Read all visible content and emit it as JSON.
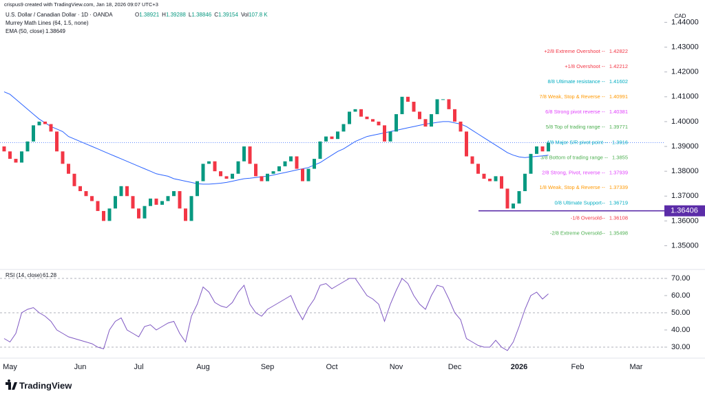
{
  "header": {
    "credit": "crispus9 created with TradingView.com, Jan 18, 2026 09:07 UTC+3",
    "logo": "TradingView"
  },
  "chart_data": [
    {
      "type": "candlestick",
      "title": "U.S. Dollar / Canadian Dollar · 1D · OANDA",
      "currency": "CAD",
      "ohlc_legend": [
        {
          "label": "O",
          "value": 1.38921
        },
        {
          "label": "H",
          "value": 1.39288
        },
        {
          "label": "L",
          "value": 1.38846
        },
        {
          "label": "C",
          "value": 1.39154
        }
      ],
      "volume_legend": {
        "label": "Vol",
        "value": "107.8 K"
      },
      "categories": [
        null,
        "May",
        null,
        null,
        null,
        null,
        null,
        null,
        null,
        null,
        null,
        null,
        null,
        "Jun",
        null,
        null,
        null,
        null,
        null,
        null,
        null,
        null,
        null,
        "Jul",
        null,
        null,
        null,
        null,
        null,
        null,
        null,
        null,
        null,
        null,
        "Aug",
        null,
        null,
        null,
        null,
        null,
        null,
        null,
        null,
        null,
        null,
        "Sep",
        null,
        null,
        null,
        null,
        null,
        null,
        null,
        null,
        null,
        null,
        "Oct",
        null,
        null,
        null,
        null,
        null,
        null,
        null,
        null,
        null,
        null,
        "Nov",
        null,
        null,
        null,
        null,
        null,
        null,
        null,
        null,
        null,
        "Dec",
        null,
        null,
        null,
        null,
        null,
        null,
        null,
        null,
        null,
        null,
        "2026",
        null,
        null,
        null,
        null,
        null,
        null,
        null,
        null,
        null,
        "Feb",
        null,
        null,
        null,
        null,
        null,
        null,
        null,
        null,
        null,
        "Mar",
        null,
        null,
        null,
        null
      ],
      "open": [
        1.39,
        1.388,
        1.385,
        1.3835,
        1.388,
        1.392,
        1.3985,
        1.4,
        1.399,
        1.396,
        1.388,
        1.383,
        1.379,
        1.374,
        1.372,
        1.37,
        1.368,
        1.364,
        1.36,
        1.365,
        1.37,
        1.374,
        1.37,
        1.365,
        1.361,
        1.366,
        1.369,
        1.3665,
        1.368,
        1.37,
        1.372,
        1.365,
        1.36,
        1.37,
        1.376,
        1.383,
        1.384,
        1.38,
        1.378,
        1.377,
        1.379,
        1.384,
        1.39,
        1.383,
        1.378,
        1.376,
        1.379,
        1.38,
        1.382,
        1.384,
        1.386,
        1.381,
        1.376,
        1.381,
        1.385,
        1.392,
        1.394,
        1.393,
        1.396,
        1.399,
        1.404,
        1.405,
        1.402,
        1.401,
        1.4,
        1.3985,
        1.392,
        1.396,
        1.403,
        1.41,
        1.408,
        1.404,
        1.401,
        1.398,
        1.403,
        1.409,
        1.409,
        1.405,
        1.4,
        1.396,
        1.386,
        1.383,
        1.379,
        1.377,
        1.376,
        1.378,
        1.373,
        1.365,
        1.367,
        1.372,
        1.379,
        1.387,
        1.39,
        1.388,
        null,
        null,
        null,
        null,
        null,
        null,
        null,
        null,
        null,
        null,
        null,
        null,
        null,
        null,
        null,
        null,
        null,
        null,
        null
      ],
      "close": [
        1.388,
        1.385,
        1.3835,
        1.388,
        1.392,
        1.3985,
        1.4,
        1.399,
        1.396,
        1.388,
        1.383,
        1.379,
        1.374,
        1.372,
        1.37,
        1.368,
        1.364,
        1.36,
        1.365,
        1.37,
        1.374,
        1.37,
        1.365,
        1.361,
        1.366,
        1.369,
        1.3665,
        1.368,
        1.37,
        1.372,
        1.365,
        1.36,
        1.37,
        1.376,
        1.383,
        1.384,
        1.38,
        1.378,
        1.377,
        1.379,
        1.384,
        1.39,
        1.383,
        1.378,
        1.376,
        1.379,
        1.38,
        1.382,
        1.384,
        1.386,
        1.381,
        1.376,
        1.381,
        1.385,
        1.392,
        1.394,
        1.393,
        1.396,
        1.399,
        1.404,
        1.405,
        1.402,
        1.401,
        1.4,
        1.3985,
        1.392,
        1.396,
        1.403,
        1.41,
        1.408,
        1.404,
        1.401,
        1.398,
        1.403,
        1.409,
        1.409,
        1.405,
        1.4,
        1.396,
        1.386,
        1.383,
        1.379,
        1.377,
        1.376,
        1.378,
        1.373,
        1.365,
        1.367,
        1.372,
        1.379,
        1.387,
        1.39,
        1.388,
        1.3915,
        null,
        null,
        null,
        null,
        null,
        null,
        null,
        null,
        null,
        null,
        null,
        null,
        null,
        null,
        null,
        null,
        null,
        null,
        null
      ],
      "up_color": "#089981",
      "down_color": "#f23645",
      "indicators": [
        {
          "name": "Murrey Math Lines (64, 1.5, none)"
        },
        {
          "name": "EMA (50, close)",
          "last": 1.38649,
          "color": "#2962ff",
          "values": [
            1.412,
            1.411,
            1.409,
            1.407,
            1.405,
            1.403,
            1.401,
            1.3995,
            1.398,
            1.397,
            1.396,
            1.394,
            1.393,
            1.392,
            1.391,
            1.39,
            1.389,
            1.388,
            1.387,
            1.386,
            1.385,
            1.384,
            1.383,
            1.382,
            1.381,
            1.38,
            1.379,
            1.3785,
            1.378,
            1.377,
            1.3765,
            1.376,
            1.3755,
            1.375,
            1.3748,
            1.3748,
            1.375,
            1.3752,
            1.3755,
            1.376,
            1.3765,
            1.377,
            1.3772,
            1.3775,
            1.3778,
            1.378,
            1.3785,
            1.379,
            1.3795,
            1.38,
            1.3805,
            1.381,
            1.3815,
            1.3825,
            1.3835,
            1.385,
            1.3865,
            1.388,
            1.389,
            1.3905,
            1.392,
            1.393,
            1.394,
            1.3945,
            1.395,
            1.3955,
            1.396,
            1.3965,
            1.397,
            1.3975,
            1.398,
            1.3985,
            1.399,
            1.3993,
            1.3997,
            1.4,
            1.4,
            1.3995,
            1.399,
            1.398,
            1.3965,
            1.395,
            1.3935,
            1.392,
            1.3905,
            1.389,
            1.3875,
            1.3865,
            1.3858,
            1.3855,
            1.3858,
            1.386,
            1.3862,
            1.3865,
            null,
            null,
            null,
            null,
            null,
            null,
            null,
            null,
            null,
            null,
            null,
            null,
            null,
            null,
            null,
            null,
            null,
            null,
            null
          ]
        }
      ],
      "murrey_levels": [
        {
          "label": "+2/8 Extreme Overshoot --",
          "value": 1.42822,
          "color": "#f23645"
        },
        {
          "label": "+1/8 Overshoot --",
          "value": 1.42212,
          "color": "#f23645"
        },
        {
          "label": "8/8 Ultimate resistance --",
          "value": 1.41602,
          "color": "#00acc1"
        },
        {
          "label": "7/8 Weak, Stop & Reverse --",
          "value": 1.40991,
          "color": "#ff9800"
        },
        {
          "label": "6/8 Strong pivot reverse --",
          "value": 1.40381,
          "color": "#e040fb"
        },
        {
          "label": "5/8 Top of trading range --",
          "value": 1.39771,
          "color": "#4caf50"
        },
        {
          "label": "4/8 Major S/R pivot point --",
          "value": 1.3916,
          "color": "#00acc1"
        },
        {
          "label": "3/8 Bottom of trading range --",
          "value": 1.3855,
          "color": "#4caf50"
        },
        {
          "label": "2/8 Strong, Pivot, reverse --",
          "value": 1.37939,
          "color": "#e040fb"
        },
        {
          "label": "1/8 Weak, Stop & Reverse --",
          "value": 1.37339,
          "color": "#ff9800"
        },
        {
          "label": "0/8 Ultimate Support--",
          "value": 1.36719,
          "color": "#00acc1"
        },
        {
          "label": "-1/8 Oversold--",
          "value": 1.36108,
          "color": "#f23645"
        },
        {
          "label": "-2/8 Extreme Oversold--",
          "value": 1.35498,
          "color": "#4caf50"
        }
      ],
      "hline": {
        "value": 1.36406,
        "color": "#5b2ca8"
      },
      "ylim": [
        1.341,
        1.444
      ],
      "yticks": [
        {
          "value": 1.44,
          "label": "1.44000"
        },
        {
          "value": 1.43,
          "label": "1.43000"
        },
        {
          "value": 1.42,
          "label": "1.42000"
        },
        {
          "value": 1.41,
          "label": "1.41000"
        },
        {
          "value": 1.4,
          "label": "1.40000"
        },
        {
          "value": 1.39,
          "label": "1.39000"
        },
        {
          "value": 1.38,
          "label": "1.38000"
        },
        {
          "value": 1.37,
          "label": "1.37000"
        },
        {
          "value": 1.36,
          "label": "1.36000"
        },
        {
          "value": 1.35,
          "label": "1.35000"
        }
      ]
    },
    {
      "type": "line",
      "title": "RSI (14, close)",
      "last": 61.28,
      "color": "#7e57c2",
      "values": [
        35,
        33,
        38,
        50,
        52,
        53,
        50,
        48,
        45,
        40,
        38,
        36,
        35,
        34,
        33,
        32,
        30,
        29,
        40,
        45,
        47,
        40,
        38,
        36,
        42,
        43,
        40,
        42,
        44,
        45,
        38,
        33,
        48,
        55,
        65,
        62,
        56,
        54,
        53,
        56,
        62,
        66,
        55,
        50,
        48,
        52,
        54,
        56,
        58,
        60,
        52,
        46,
        53,
        58,
        66,
        67,
        64,
        66,
        68,
        70,
        70,
        65,
        60,
        58,
        55,
        45,
        55,
        63,
        70,
        67,
        60,
        55,
        52,
        60,
        66,
        65,
        58,
        50,
        46,
        35,
        33,
        31,
        30,
        30,
        34,
        30,
        28,
        33,
        42,
        52,
        60,
        62,
        58,
        61,
        null,
        null,
        null,
        null,
        null,
        null,
        null,
        null,
        null,
        null,
        null,
        null,
        null,
        null,
        null,
        null,
        null,
        null,
        null
      ],
      "levels": [
        70,
        50,
        30
      ],
      "ylim": [
        24,
        74
      ],
      "yticks": [
        {
          "value": 70,
          "label": "70.00"
        },
        {
          "value": 60,
          "label": "60.00"
        },
        {
          "value": 50,
          "label": "50.00"
        },
        {
          "value": 40,
          "label": "40.00"
        },
        {
          "value": 30,
          "label": "30.00"
        }
      ]
    }
  ]
}
